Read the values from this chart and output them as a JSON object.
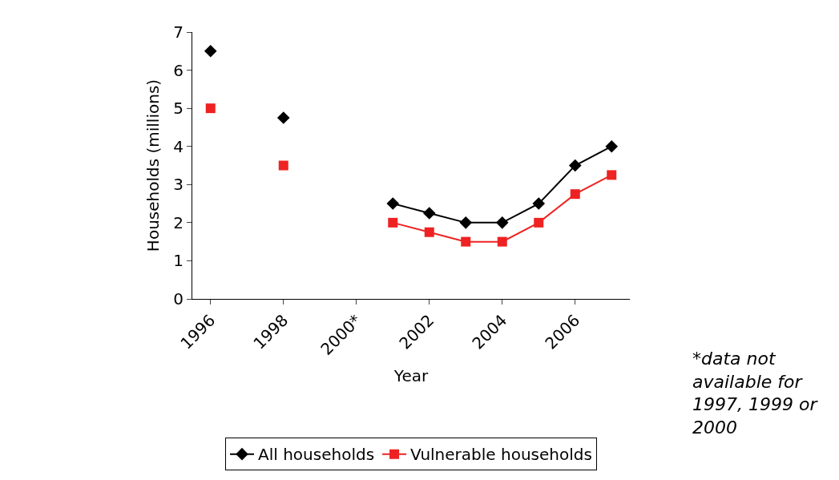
{
  "chart_data": {
    "type": "line",
    "xlabel": "Year",
    "ylabel": "Households (millions)",
    "categories": [
      "1996",
      null,
      "1998",
      null,
      "2000*",
      null,
      "2002",
      null,
      "2004",
      null,
      "2006",
      null
    ],
    "series": [
      {
        "name": "All households",
        "color": "#000000",
        "marker": "diamond",
        "values": [
          6.5,
          null,
          4.75,
          null,
          null,
          2.5,
          2.25,
          2,
          2,
          2.5,
          3.5,
          4
        ]
      },
      {
        "name": "Vulnerable households",
        "color": "#ee2222",
        "marker": "square",
        "values": [
          5,
          null,
          3.5,
          null,
          null,
          2,
          1.75,
          1.5,
          1.5,
          2,
          2.75,
          3.25
        ]
      }
    ],
    "ylim": [
      0,
      7
    ],
    "yticks": [
      0,
      1,
      2,
      3,
      4,
      5,
      6,
      7
    ],
    "grid": false,
    "legend": "bottom",
    "line_style": "solid",
    "annotations": [
      "*data not available for 1997, 1999 or 2000"
    ]
  }
}
